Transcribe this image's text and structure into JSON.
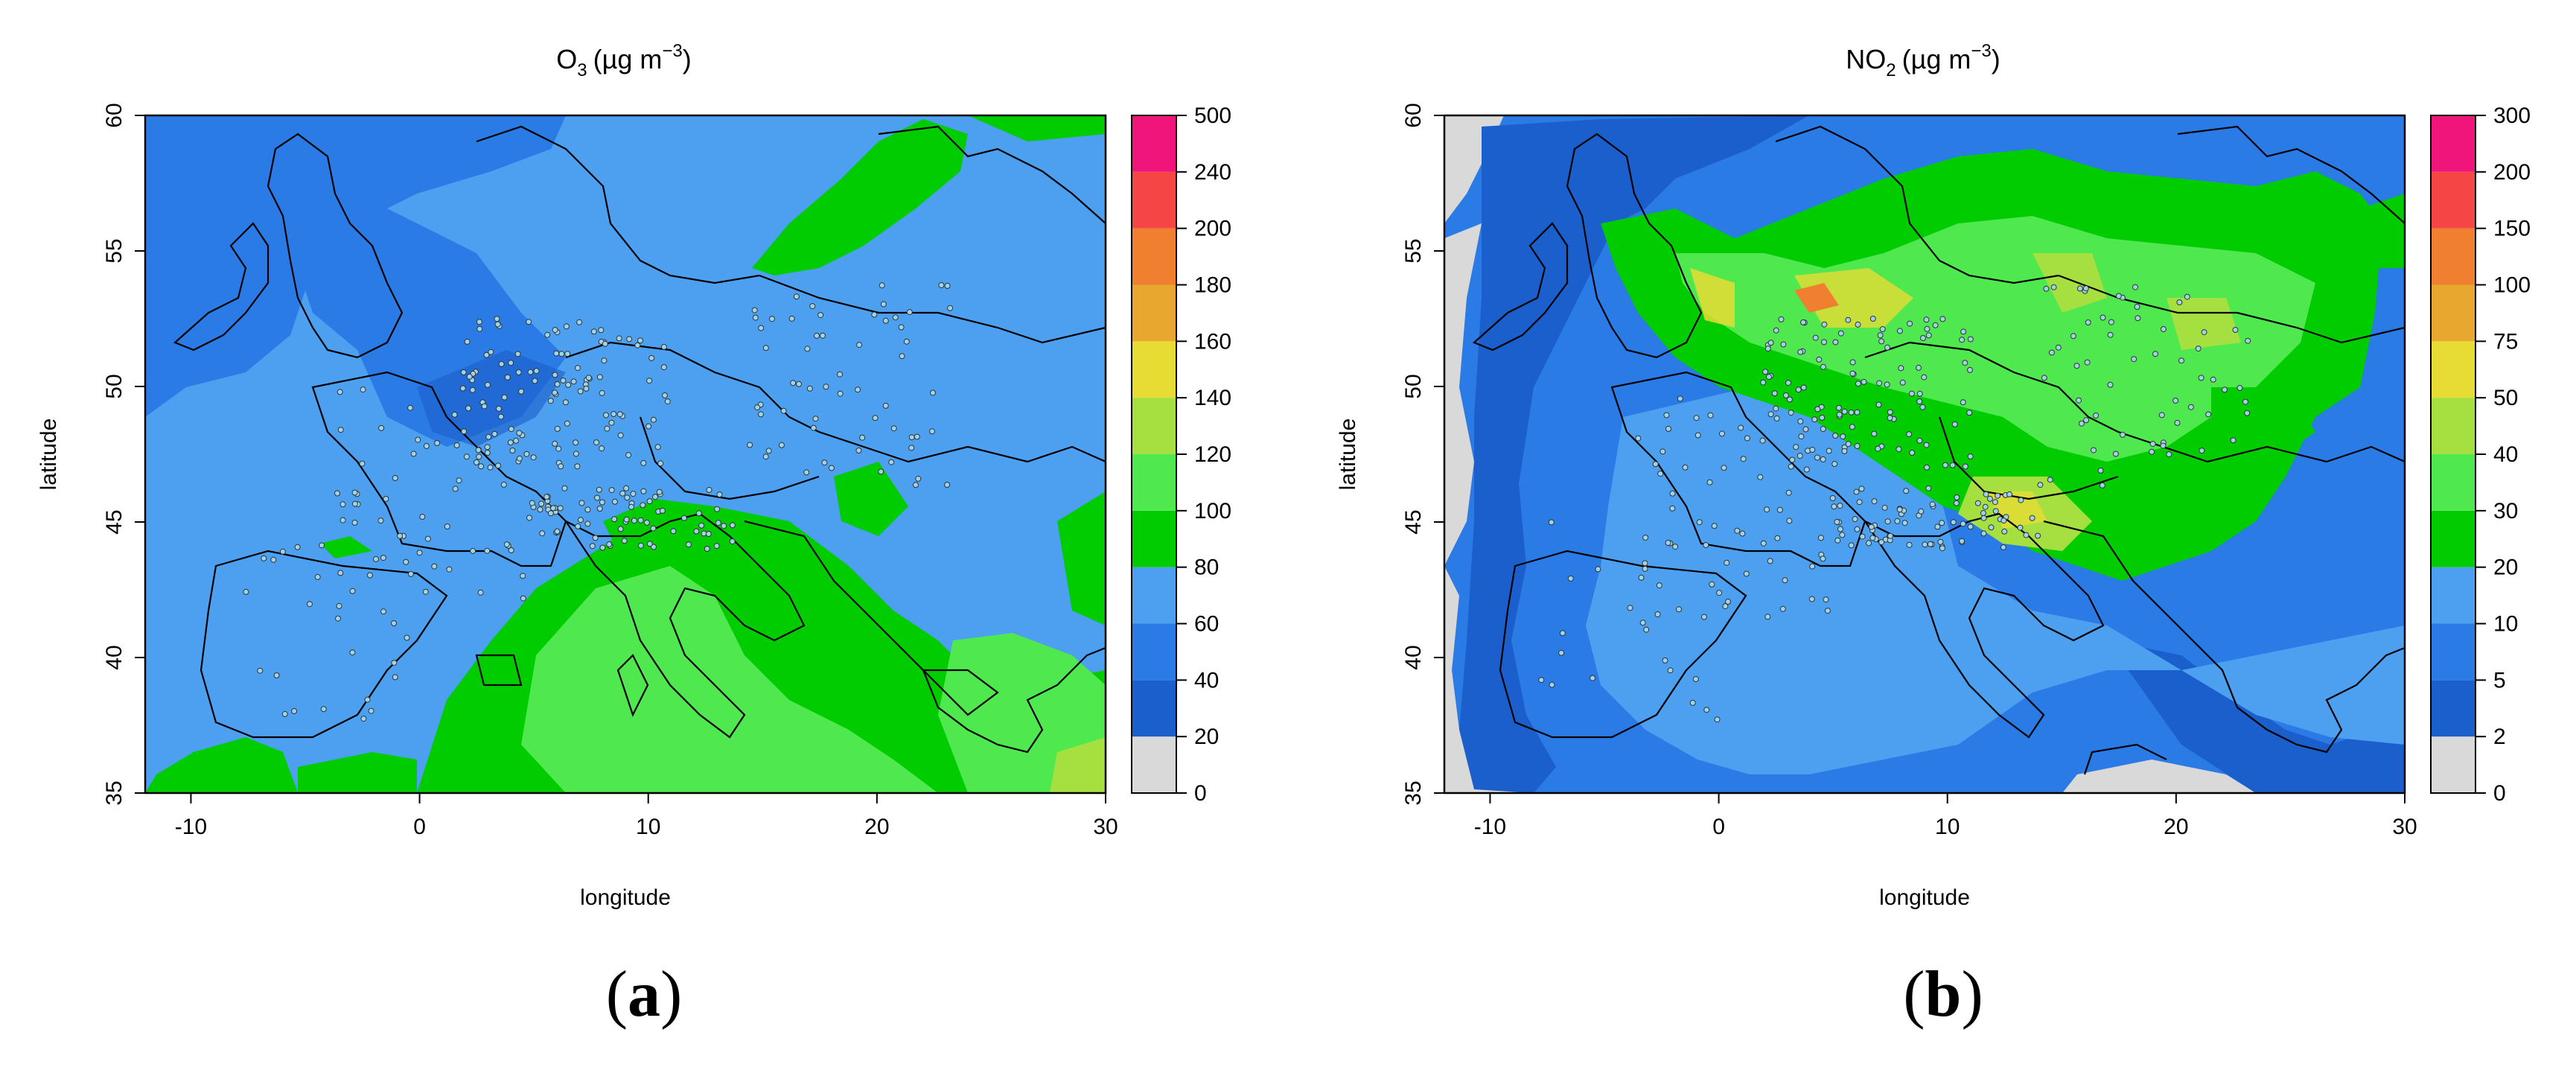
{
  "maps": [
    {
      "id": "a",
      "panel_label": "a",
      "title_main": "O",
      "title_sub": "3",
      "title_unit": "(µg m",
      "title_exp": "−3",
      "title_close": ")",
      "xlabel": "longitude",
      "ylabel": "latitude",
      "x_ticks": [
        "-10",
        "0",
        "10",
        "20",
        "30"
      ],
      "y_ticks": [
        "35",
        "40",
        "45",
        "50",
        "55",
        "60"
      ],
      "colorbar_labels": [
        "0",
        "20",
        "40",
        "60",
        "80",
        "100",
        "120",
        "140",
        "160",
        "180",
        "200",
        "240",
        "500"
      ],
      "colorbar_colors": [
        "#d9d9d9",
        "#1a5fcc",
        "#2b7be6",
        "#4d9ff0",
        "#00cc00",
        "#4fe84f",
        "#a6e040",
        "#e6dc33",
        "#e8a830",
        "#f08030",
        "#f54545",
        "#f0157a"
      ],
      "background_color": "#4d9ff0",
      "marker_fill": "#9fd4e8"
    },
    {
      "id": "b",
      "panel_label": "b",
      "title_main": "NO",
      "title_sub": "2",
      "title_unit": "(µg m",
      "title_exp": "−3",
      "title_close": ")",
      "xlabel": "longitude",
      "ylabel": "latitude",
      "x_ticks": [
        "-10",
        "0",
        "10",
        "20",
        "30"
      ],
      "y_ticks": [
        "35",
        "40",
        "45",
        "50",
        "55",
        "60"
      ],
      "colorbar_labels": [
        "0",
        "2",
        "5",
        "10",
        "20",
        "30",
        "40",
        "50",
        "75",
        "100",
        "150",
        "200",
        "300"
      ],
      "colorbar_colors": [
        "#d9d9d9",
        "#1a5fcc",
        "#2b7be6",
        "#4d9ff0",
        "#00cc00",
        "#4fe84f",
        "#a6e040",
        "#e6dc33",
        "#e8a830",
        "#f08030",
        "#f54545",
        "#f0157a"
      ],
      "background_color": "#2b7be6",
      "marker_fill": "#9fd4e8"
    }
  ]
}
